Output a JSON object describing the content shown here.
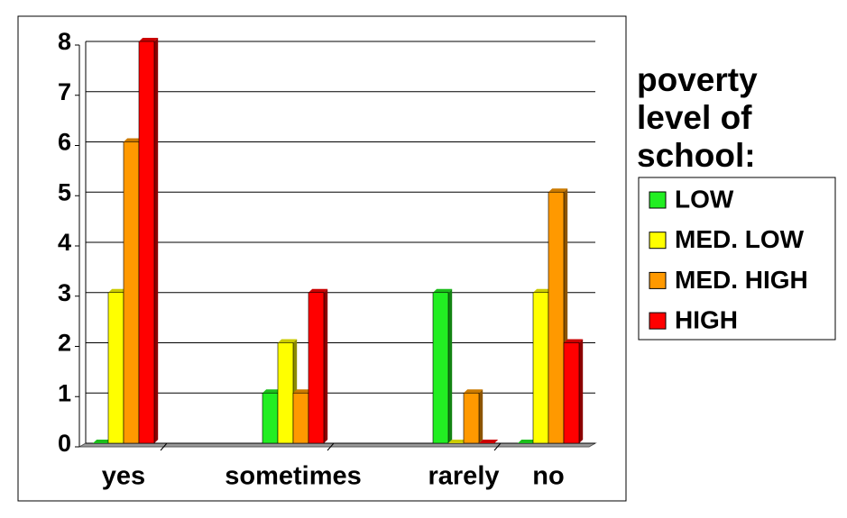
{
  "chart_data": {
    "type": "bar",
    "categories": [
      "yes",
      "sometimes",
      "rarely",
      "no"
    ],
    "series": [
      {
        "name": "LOW",
        "color": "#22ee22",
        "values": [
          0,
          1,
          3,
          0
        ]
      },
      {
        "name": "MED. LOW",
        "color": "#ffff00",
        "values": [
          3,
          2,
          0,
          3
        ]
      },
      {
        "name": "MED. HIGH",
        "color": "#ff9900",
        "values": [
          6,
          1,
          1,
          5
        ]
      },
      {
        "name": "HIGH",
        "color": "#ff0000",
        "values": [
          8,
          3,
          0,
          2
        ]
      }
    ],
    "ylim": [
      0,
      8
    ],
    "yticks": [
      0,
      1,
      2,
      3,
      4,
      5,
      6,
      7,
      8
    ],
    "grid": true,
    "legend_title": "poverty level of school:",
    "legend_position": "right"
  }
}
